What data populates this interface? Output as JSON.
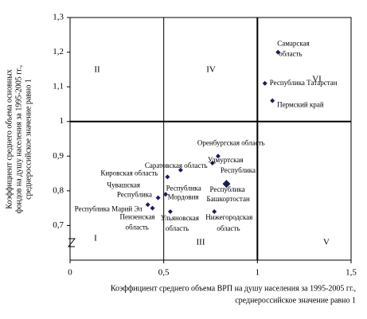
{
  "chart_data": {
    "type": "scatter",
    "xlabel": [
      "Коэффициент среднего объема ВРП на душу населения за 1995-2005 гг.,",
      "среднероссийское значение равно 1"
    ],
    "ylabel": [
      "Коэффициент среднего объема основных",
      "фондов на душу населения за 1995-2005 гг.,",
      "среднероссийское значение равно 1"
    ],
    "xlim": [
      0,
      1.5
    ],
    "ylim": [
      0.6,
      1.3
    ],
    "xticks": [
      0,
      {
        "value": 0.5,
        "label": "0,5"
      },
      1,
      {
        "value": 1.5,
        "label": "1,5"
      }
    ],
    "yticks": [
      {
        "value": 0.7,
        "label": "0,7"
      },
      {
        "value": 0.8,
        "label": "0,8"
      },
      {
        "value": 0.9,
        "label": "0,9"
      },
      1,
      {
        "value": 1.1,
        "label": "1,1"
      },
      {
        "value": 1.2,
        "label": "1,2"
      },
      {
        "value": 1.3,
        "label": "1,3"
      }
    ],
    "divider_x": [
      0.5,
      1
    ],
    "divider_y": [
      1
    ],
    "region_labels": [
      "II",
      "IV",
      "VI",
      "I",
      "III",
      "V"
    ],
    "series": [
      {
        "color": "#1c1c5a",
        "x": [
          1.11,
          1.04,
          1.08,
          0.79,
          0.76,
          0.835,
          0.59,
          0.52,
          0.51,
          0.47,
          0.415,
          0.44,
          0.535,
          0.77
        ],
        "values": [
          1.2,
          1.11,
          1.06,
          0.9,
          0.88,
          0.82,
          0.86,
          0.84,
          0.79,
          0.78,
          0.76,
          0.75,
          0.74,
          0.74
        ]
      }
    ],
    "point_labels": [
      [
        "Самарская",
        "область"
      ],
      [
        "Республика Татарстан"
      ],
      [
        "Пермский край"
      ],
      [
        "Оренбургская область"
      ],
      [
        "Удмуртская",
        "Республика"
      ],
      [
        "Республика",
        "Башкортостан"
      ],
      [
        "Саратовская область"
      ],
      [
        "Кировская область"
      ],
      [
        "Чувашская",
        "Республика"
      ],
      [
        "Республика",
        "Мордовия"
      ],
      [
        "Республика Марий Эл"
      ],
      [
        "Пензенская",
        "область"
      ],
      [
        "Ульяновская",
        "область"
      ],
      [
        "Нижегородская",
        "область"
      ]
    ]
  }
}
